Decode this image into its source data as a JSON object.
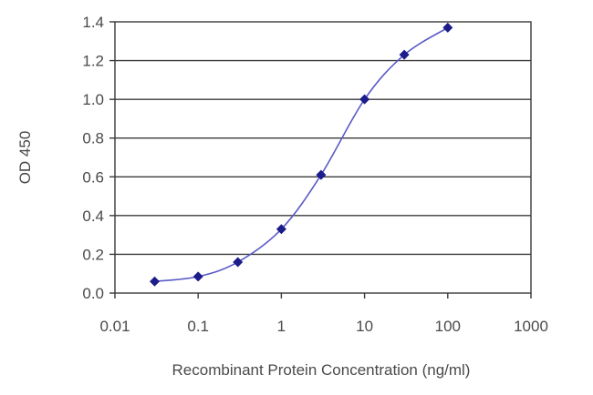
{
  "chart_data": {
    "type": "scatter",
    "xlabel": "Recombinant Protein Concentration (ng/ml)",
    "ylabel": "OD 450",
    "x_scale": "log",
    "xlim": [
      0.01,
      1000
    ],
    "ylim": [
      0.0,
      1.4
    ],
    "x_ticks": [
      "0.01",
      "0.1",
      "1",
      "10",
      "100",
      "1000"
    ],
    "y_ticks": [
      "0.0",
      "0.2",
      "0.4",
      "0.6",
      "0.8",
      "1.0",
      "1.2",
      "1.4"
    ],
    "grid": "horizontal",
    "series": [
      {
        "x": [
          0.03,
          0.1,
          0.3,
          1,
          3,
          10,
          30,
          100
        ],
        "y": [
          0.06,
          0.085,
          0.16,
          0.33,
          0.61,
          1.0,
          1.23,
          1.37
        ],
        "color": "#1c1c8a",
        "line_color": "#5a5ac8",
        "marker": "diamond"
      }
    ]
  }
}
